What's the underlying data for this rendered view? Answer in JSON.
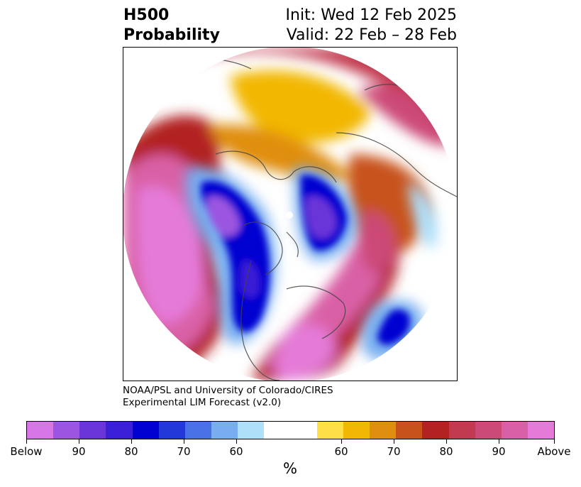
{
  "title": {
    "left_line1": "H500",
    "left_line2": "Probability",
    "right_line1": "Init: Wed 12 Feb 2025",
    "right_line2": "Valid: 22 Feb – 28 Feb"
  },
  "credit": {
    "line1": "NOAA/PSL and University of Colorado/CIRES",
    "line2": "Experimental LIM Forecast (v2.0)"
  },
  "colorbar": {
    "unit": "%",
    "colors": [
      "#d675e6",
      "#9b55e0",
      "#6a35d8",
      "#3a1fd6",
      "#0000d0",
      "#2238d8",
      "#4a70e6",
      "#76aef0",
      "#aee0fa",
      "#ffffff",
      "#ffffff",
      "#fde047",
      "#f2b705",
      "#e08e10",
      "#c8531a",
      "#b22222",
      "#c23a50",
      "#cc4a78",
      "#d960a6",
      "#e57ad8"
    ],
    "tick_labels": [
      "Below",
      "90",
      "80",
      "70",
      "60",
      "60",
      "70",
      "80",
      "90",
      "Above"
    ]
  },
  "map": {
    "projection": "north-polar-stereographic",
    "field": "500 hPa height anomaly probability",
    "boundary_color": "#444444"
  }
}
